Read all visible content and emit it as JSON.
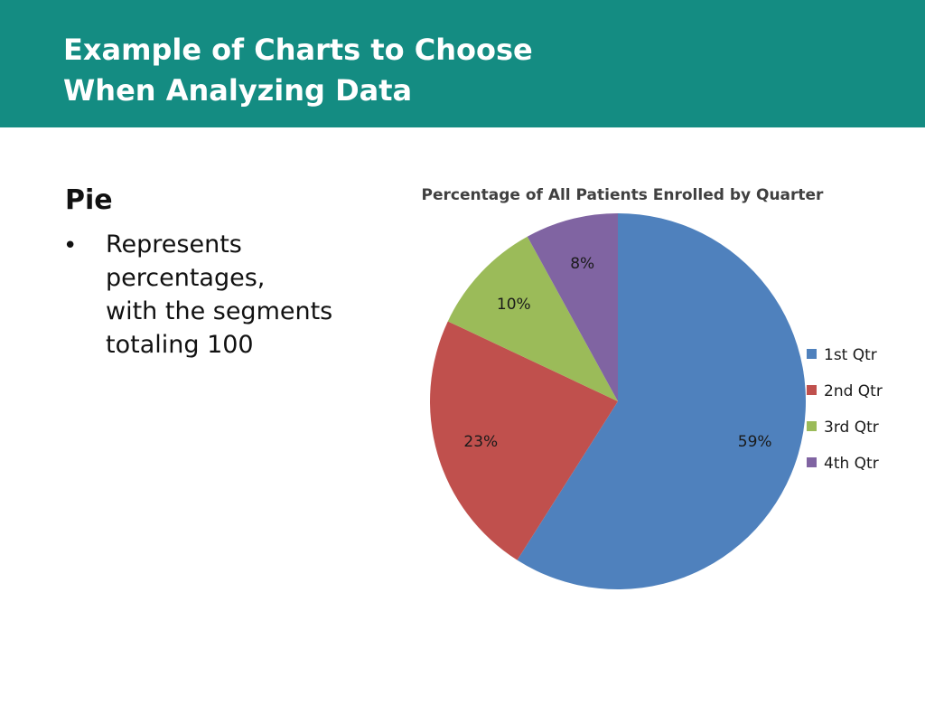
{
  "header": {
    "title_line1": "Example of Charts to Choose",
    "title_line2": "When Analyzing Data",
    "background_color": "#148c82"
  },
  "content": {
    "heading": "Pie",
    "bullet_symbol": "•",
    "bullet_lines": [
      "Represents",
      "percentages,",
      "with the segments",
      "totaling 100"
    ]
  },
  "chart_data": {
    "type": "pie",
    "title": "Percentage of All Patients Enrolled by Quarter",
    "categories": [
      "1st Qtr",
      "2nd Qtr",
      "3rd Qtr",
      "4th Qtr"
    ],
    "values": [
      59,
      23,
      10,
      8
    ],
    "labels": [
      "59%",
      "23%",
      "10%",
      "8%"
    ],
    "colors": [
      "#4f81bd",
      "#c0504d",
      "#9bbb59",
      "#8064a2"
    ],
    "legend_position": "right",
    "start_angle": "12 o'clock",
    "direction": "clockwise"
  }
}
